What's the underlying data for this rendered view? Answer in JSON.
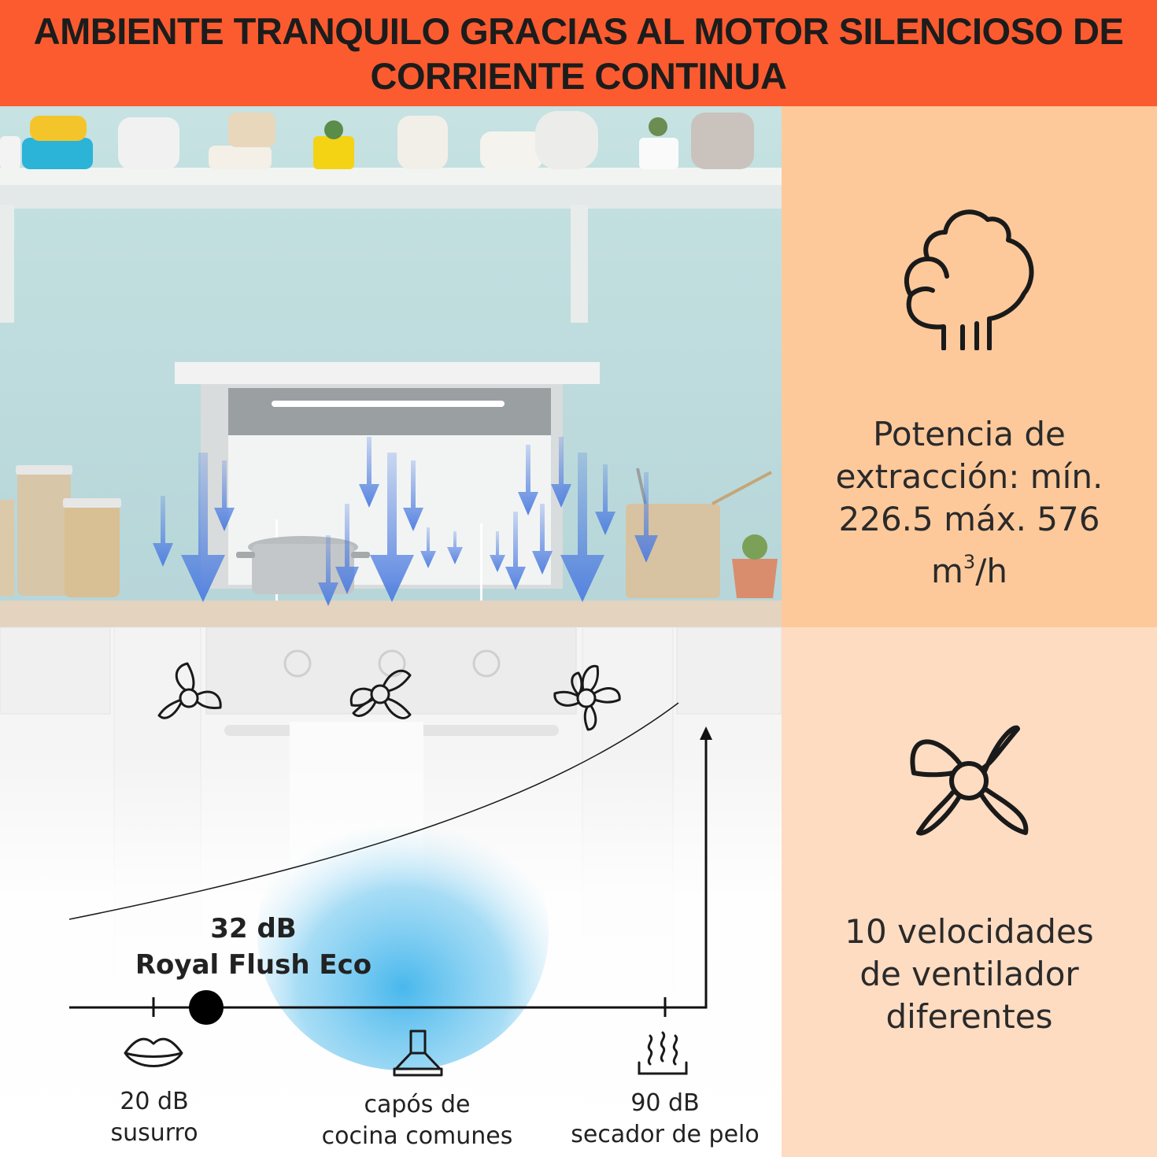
{
  "banner": {
    "line1": "AMBIENTE TRANQUILO GRACIAS AL MOTOR SILENCIOSO DE",
    "line2": "CORRIENTE CONTINUA"
  },
  "features": [
    {
      "icon": "steam-cloud-icon",
      "lines": [
        "Potencia de",
        "extracción: mín.",
        "226.5 máx. 576"
      ],
      "unit_base": "m",
      "unit_sup": "3",
      "unit_rest": "/h"
    },
    {
      "icon": "fan-icon",
      "lines": [
        "10 velocidades",
        "de ventilador",
        "diferentes"
      ]
    }
  ],
  "noise_scale": {
    "highlight": {
      "db": "32 dB",
      "name": "Royal Flush Eco"
    },
    "markers": [
      {
        "icon": "lips-icon",
        "line1": "20 dB",
        "line2": "susurro"
      },
      {
        "icon": "range-hood-icon",
        "line1": "capós de",
        "line2": "cocina comunes"
      },
      {
        "icon": "heat-waves-icon",
        "line1": "90 dB",
        "line2": "secador de pelo"
      }
    ]
  },
  "colors": {
    "banner": "#fc5b2f",
    "panel_top": "#fdc99b",
    "panel_bottom": "#fddcc2",
    "airflow": "#4f7ee0",
    "glow": "#3fb4ec"
  }
}
